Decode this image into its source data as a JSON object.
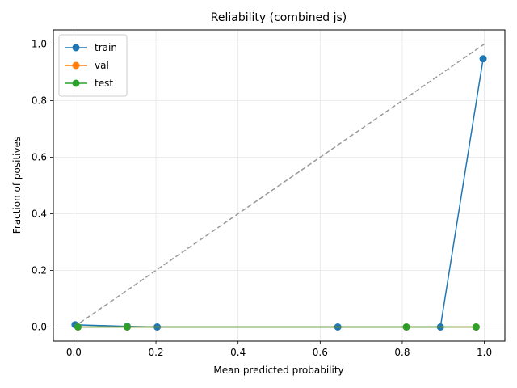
{
  "chart_data": {
    "type": "line",
    "title": "Reliability (combined js)",
    "xlabel": "Mean predicted probability",
    "ylabel": "Fraction of positives",
    "xlim": [
      -0.05,
      1.05
    ],
    "ylim": [
      -0.05,
      1.05
    ],
    "xticks": [
      "0.0",
      "0.2",
      "0.4",
      "0.6",
      "0.8",
      "1.0"
    ],
    "yticks": [
      "0.0",
      "0.2",
      "0.4",
      "0.6",
      "0.8",
      "1.0"
    ],
    "grid": true,
    "legend_position": "top-left",
    "reference_line": {
      "x": [
        0,
        1
      ],
      "y": [
        0,
        1
      ],
      "style": "dashed",
      "color": "#999999"
    },
    "series": [
      {
        "name": "train",
        "color": "#1f77b4",
        "x": [
          0.003,
          0.13,
          0.203,
          0.643,
          0.893,
          0.997
        ],
        "y": [
          0.008,
          0.002,
          0.0,
          0.0,
          0.0,
          0.948
        ]
      },
      {
        "name": "val",
        "color": "#ff7f0e",
        "x": [
          0.01,
          0.13,
          0.81,
          0.98
        ],
        "y": [
          0.0,
          0.0,
          0.0,
          0.0
        ]
      },
      {
        "name": "test",
        "color": "#2ca02c",
        "x": [
          0.01,
          0.13,
          0.81,
          0.98
        ],
        "y": [
          0.0,
          0.0,
          0.0,
          0.0
        ]
      }
    ]
  }
}
